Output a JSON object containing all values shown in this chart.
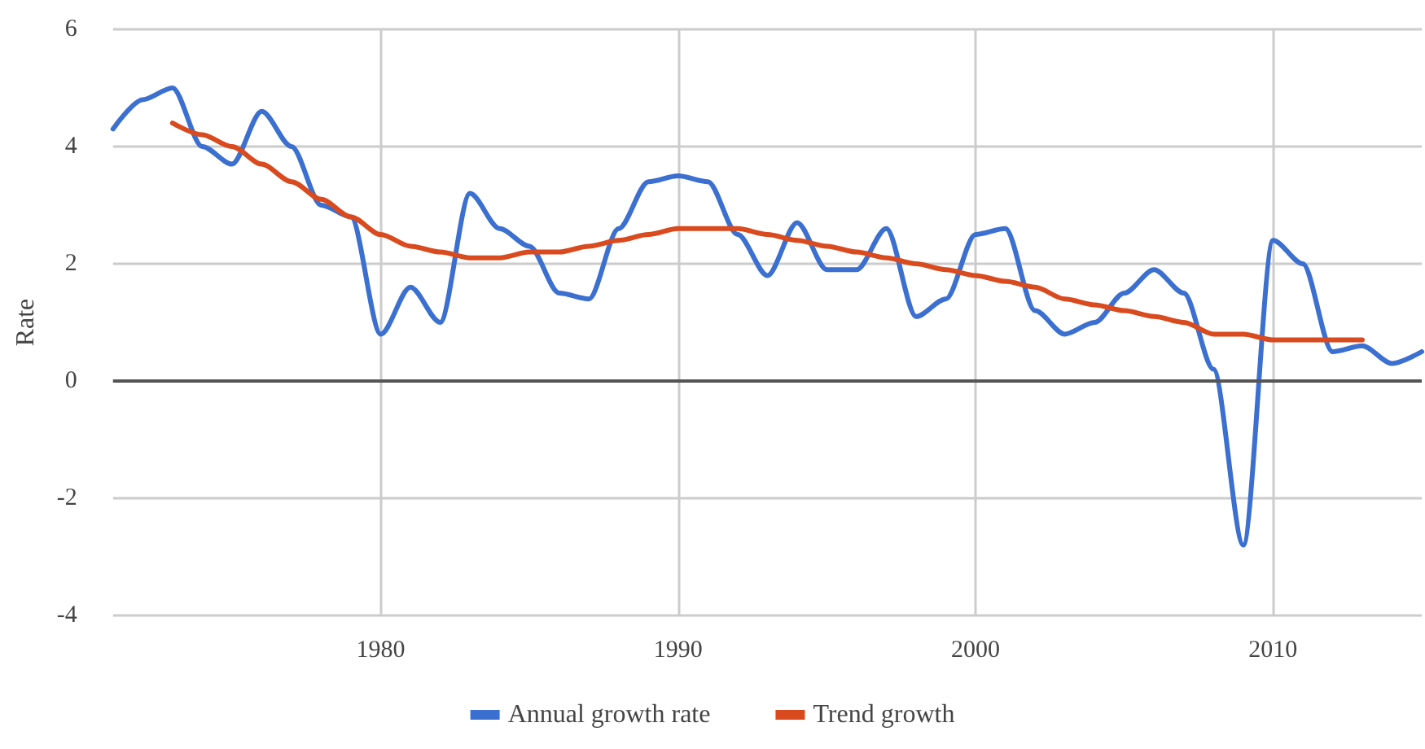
{
  "chart_data": {
    "type": "line",
    "ylabel": "Rate",
    "xlim": [
      1971,
      2015
    ],
    "xticks": [
      1980,
      1990,
      2000,
      2010
    ],
    "ylim": [
      -4,
      6
    ],
    "yticks": [
      -4,
      -2,
      0,
      2,
      4,
      6
    ],
    "grid": true,
    "legend": "bottom",
    "marker": "none",
    "line_style": "solid",
    "series": [
      {
        "name": "Annual growth rate",
        "color": "#3b6fd0",
        "x": [
          1971,
          1972,
          1973,
          1974,
          1975,
          1976,
          1977,
          1978,
          1979,
          1980,
          1981,
          1982,
          1983,
          1984,
          1985,
          1986,
          1987,
          1988,
          1989,
          1990,
          1991,
          1992,
          1993,
          1994,
          1995,
          1996,
          1997,
          1998,
          1999,
          2000,
          2001,
          2002,
          2003,
          2004,
          2005,
          2006,
          2007,
          2008,
          2009,
          2010,
          2011,
          2012,
          2013,
          2014,
          2015
        ],
        "values": [
          4.3,
          4.8,
          5.0,
          4.0,
          3.7,
          4.6,
          4.0,
          3.0,
          2.8,
          0.8,
          1.6,
          1.0,
          3.2,
          2.6,
          2.3,
          1.5,
          1.4,
          2.6,
          3.4,
          3.5,
          3.4,
          2.5,
          1.8,
          2.7,
          1.9,
          1.9,
          2.6,
          1.1,
          1.4,
          2.5,
          2.6,
          1.2,
          0.8,
          1.0,
          1.5,
          1.9,
          1.5,
          0.2,
          -2.8,
          2.4,
          2.0,
          0.5,
          0.6,
          0.3,
          0.5
        ]
      },
      {
        "name": "Trend growth",
        "color": "#d94a1e",
        "x": [
          1973,
          1974,
          1975,
          1976,
          1977,
          1978,
          1979,
          1980,
          1981,
          1982,
          1983,
          1984,
          1985,
          1986,
          1987,
          1988,
          1989,
          1990,
          1991,
          1992,
          1993,
          1994,
          1995,
          1996,
          1997,
          1998,
          1999,
          2000,
          2001,
          2002,
          2003,
          2004,
          2005,
          2006,
          2007,
          2008,
          2009,
          2010,
          2011,
          2012,
          2013
        ],
        "values": [
          4.4,
          4.2,
          4.0,
          3.7,
          3.4,
          3.1,
          2.8,
          2.5,
          2.3,
          2.2,
          2.1,
          2.1,
          2.2,
          2.2,
          2.3,
          2.4,
          2.5,
          2.6,
          2.6,
          2.6,
          2.5,
          2.4,
          2.3,
          2.2,
          2.1,
          2.0,
          1.9,
          1.8,
          1.7,
          1.6,
          1.4,
          1.3,
          1.2,
          1.1,
          1.0,
          0.8,
          0.8,
          0.7,
          0.7,
          0.7,
          0.7
        ]
      }
    ]
  }
}
